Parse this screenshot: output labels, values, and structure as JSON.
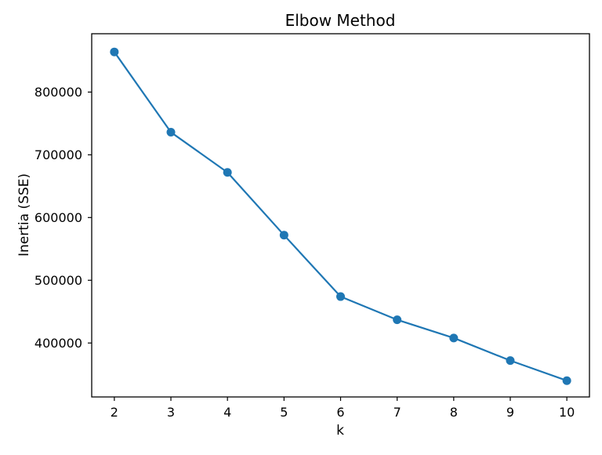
{
  "chart_data": {
    "type": "line",
    "title": "Elbow Method",
    "xlabel": "k",
    "ylabel": "Inertia (SSE)",
    "x": [
      2,
      3,
      4,
      5,
      6,
      7,
      8,
      9,
      10
    ],
    "y": [
      864000,
      736000,
      672000,
      572000,
      474000,
      437000,
      408000,
      372000,
      340000
    ],
    "series": [
      {
        "name": "Inertia (SSE)",
        "x": [
          2,
          3,
          4,
          5,
          6,
          7,
          8,
          9,
          10
        ],
        "values": [
          864000,
          736000,
          672000,
          572000,
          474000,
          437000,
          408000,
          372000,
          340000
        ]
      }
    ],
    "xticks": [
      2,
      3,
      4,
      5,
      6,
      7,
      8,
      9,
      10
    ],
    "yticks": [
      400000,
      500000,
      600000,
      700000,
      800000
    ],
    "xlim": [
      1.6,
      10.4
    ],
    "ylim": [
      314000,
      893000
    ],
    "grid": false,
    "legend": "none",
    "line_color": "#1f77b4",
    "marker": "o",
    "axis_color": "#000000",
    "background_color": "#ffffff"
  }
}
